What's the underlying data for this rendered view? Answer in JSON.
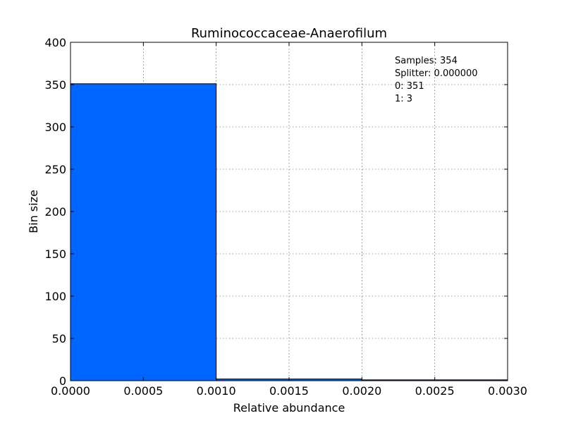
{
  "chart_data": {
    "type": "bar",
    "title": "Ruminococcaceae-Anaerofilum",
    "xlabel": "Relative abundance",
    "ylabel": "Bin size",
    "xlim": [
      0.0,
      0.003
    ],
    "ylim": [
      0,
      400
    ],
    "x_ticks": [
      "0.0000",
      "0.0005",
      "0.0010",
      "0.0015",
      "0.0020",
      "0.0025",
      "0.0030"
    ],
    "y_ticks": [
      "0",
      "50",
      "100",
      "150",
      "200",
      "250",
      "300",
      "350",
      "400"
    ],
    "grid": true,
    "bins": [
      {
        "start": 0.0,
        "end": 0.001,
        "value": 351
      },
      {
        "start": 0.001,
        "end": 0.002,
        "value": 2
      },
      {
        "start": 0.002,
        "end": 0.003,
        "value": 1
      }
    ],
    "bar_color": "#0066ff",
    "annotations": [
      "Samples: 354",
      "Splitter: 0.000000",
      "0: 351",
      "1: 3"
    ],
    "annotation_position": "top-right"
  }
}
